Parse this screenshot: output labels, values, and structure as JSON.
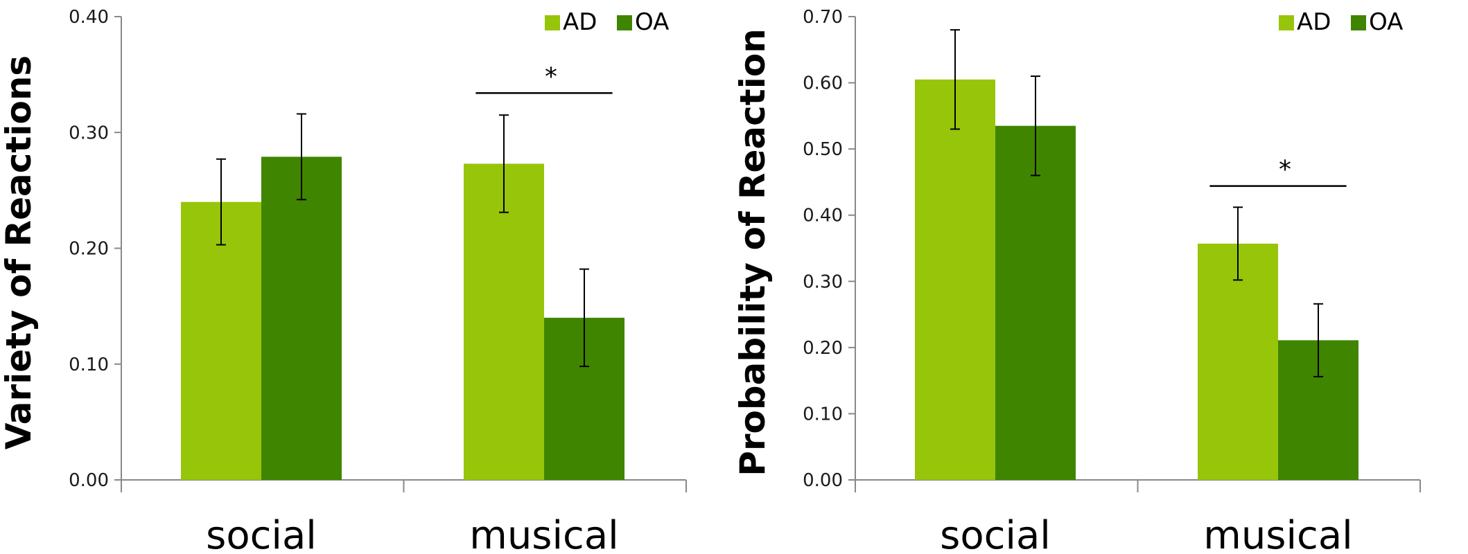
{
  "colors": {
    "AD": "#97c50a",
    "OA": "#3f8500",
    "axis": "#888888",
    "text": "#000000"
  },
  "chart_data": [
    {
      "type": "bar",
      "ylabel": "Variety of Reactions",
      "xlabel": "",
      "categories": [
        "social",
        "musical"
      ],
      "ylim": [
        0,
        0.4
      ],
      "yticks": [
        "0.00",
        "0.10",
        "0.20",
        "0.30",
        "0.40"
      ],
      "ytick_values": [
        0,
        0.1,
        0.2,
        0.3,
        0.4
      ],
      "legend": {
        "position": "top-right",
        "entries": [
          "AD",
          "OA"
        ]
      },
      "grid": false,
      "series": [
        {
          "name": "AD",
          "values": [
            0.24,
            0.273
          ],
          "error_low": [
            0.203,
            0.231
          ],
          "error_high": [
            0.277,
            0.315
          ]
        },
        {
          "name": "OA",
          "values": [
            0.279,
            0.14
          ],
          "error_low": [
            0.242,
            0.098
          ],
          "error_high": [
            0.316,
            0.182
          ]
        }
      ],
      "annotations": [
        {
          "text": "*",
          "category": "musical",
          "y": 0.334
        }
      ]
    },
    {
      "type": "bar",
      "ylabel": "Probability of Reaction",
      "xlabel": "",
      "categories": [
        "social",
        "musical"
      ],
      "ylim": [
        0,
        0.7
      ],
      "yticks": [
        "0.00",
        "0.10",
        "0.20",
        "0.30",
        "0.40",
        "0.50",
        "0.60",
        "0.70"
      ],
      "ytick_values": [
        0,
        0.1,
        0.2,
        0.3,
        0.4,
        0.5,
        0.6,
        0.7
      ],
      "legend": {
        "position": "top-right",
        "entries": [
          "AD",
          "OA"
        ]
      },
      "grid": false,
      "series": [
        {
          "name": "AD",
          "values": [
            0.605,
            0.357
          ],
          "error_low": [
            0.53,
            0.302
          ],
          "error_high": [
            0.68,
            0.412
          ]
        },
        {
          "name": "OA",
          "values": [
            0.535,
            0.211
          ],
          "error_low": [
            0.46,
            0.156
          ],
          "error_high": [
            0.61,
            0.266
          ]
        }
      ],
      "annotations": [
        {
          "text": "*",
          "category": "musical",
          "y": 0.444
        }
      ]
    }
  ]
}
